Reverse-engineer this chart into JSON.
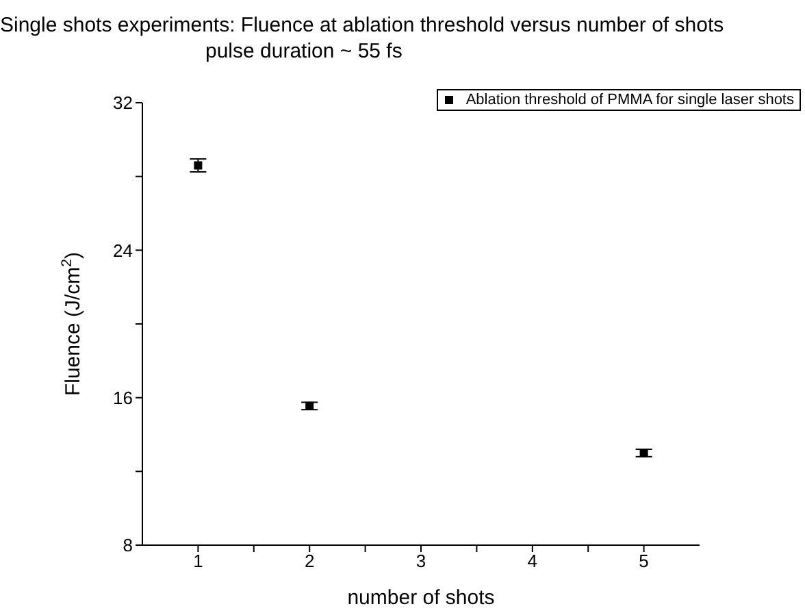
{
  "chart_data": {
    "type": "scatter",
    "title": "Single shots experiments: Fluence at ablation threshold versus number of shots",
    "subtitle": "pulse duration ~ 55 fs",
    "xlabel": "number of shots",
    "ylabel": "Fluence (J/cm$^{2}$)",
    "x": [
      1,
      2,
      5
    ],
    "series": [
      {
        "name": "Ablation threshold of PMMA for single laser shots",
        "color": "#000000",
        "values": [
          28.6,
          15.55,
          13.0
        ],
        "errors": [
          0.35,
          0.2,
          0.2
        ]
      }
    ],
    "xlim": [
      0.5,
      5.5
    ],
    "xticks": [
      1,
      {
        "value": 1.5,
        "label": null
      },
      2,
      {
        "value": 2.5,
        "label": null
      },
      3,
      {
        "value": 3.5,
        "label": null
      },
      4,
      {
        "value": 4.5,
        "label": null
      },
      5
    ],
    "ylim": [
      8,
      32
    ],
    "yticks": [
      8,
      {
        "value": 12,
        "label": null
      },
      16,
      {
        "value": 20,
        "label": null
      },
      24,
      {
        "value": 28,
        "label": null
      },
      32
    ],
    "grid": false,
    "legend": "top right",
    "marker": "square"
  }
}
